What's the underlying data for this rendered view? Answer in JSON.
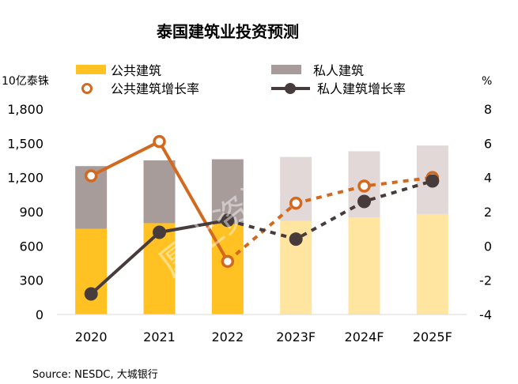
{
  "chart_data": {
    "type": "bar",
    "title": "泰国建筑业投资预测",
    "ylabel_left": "10亿泰铢",
    "ylabel_right": "%",
    "categories": [
      "2020",
      "2021",
      "2022",
      "2023F",
      "2024F",
      "2025F"
    ],
    "ylim_left": [
      0,
      1800
    ],
    "yticks_left": [
      "0",
      "300",
      "600",
      "900",
      "1,200",
      "1,500",
      "1,800"
    ],
    "ylim_right": [
      -4,
      8
    ],
    "yticks_right": [
      "-4",
      "-2",
      "0",
      "2",
      "4",
      "6",
      "8"
    ],
    "series": [
      {
        "name": "公共建筑",
        "kind": "bar",
        "axis": "left",
        "values": [
          750,
          800,
          790,
          820,
          850,
          880
        ]
      },
      {
        "name": "私人建筑",
        "kind": "bar",
        "axis": "left",
        "values": [
          550,
          550,
          570,
          560,
          580,
          600
        ]
      },
      {
        "name": "公共建筑增长率",
        "kind": "line",
        "axis": "right",
        "values": [
          4.1,
          6.1,
          -0.9,
          2.5,
          3.5,
          4.0
        ]
      },
      {
        "name": "私人建筑增长率",
        "kind": "line",
        "axis": "right",
        "values": [
          -2.8,
          0.8,
          1.5,
          0.4,
          2.6,
          3.8
        ]
      }
    ],
    "forecast_categories": [
      "2023F",
      "2024F",
      "2025F"
    ],
    "colors": {
      "public_bar": "#FFC222",
      "private_bar": "#A89C9B",
      "public_bar_forecast": "#FFE5A0",
      "private_bar_forecast": "#E2D8D8",
      "public_line": "#D2691E",
      "private_line": "#473C3B"
    },
    "source": "Source: NESDC, 大城银行",
    "watermark": "厚土资讯"
  }
}
